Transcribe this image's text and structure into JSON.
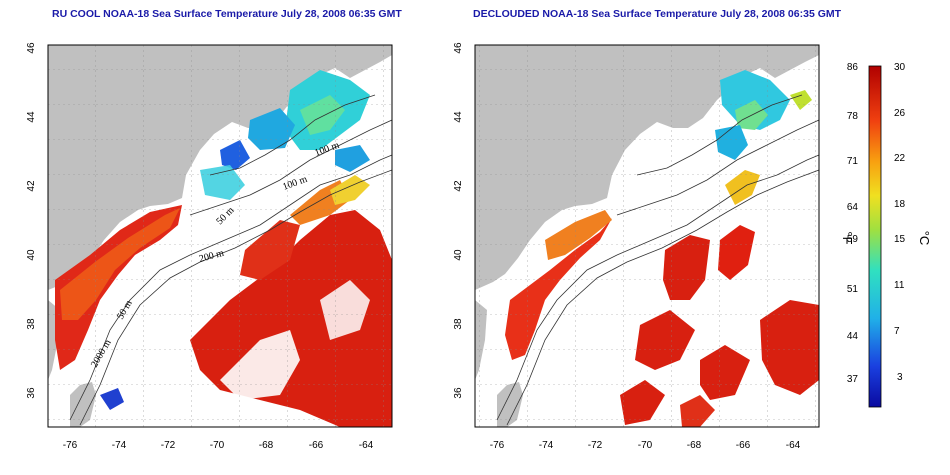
{
  "left_panel": {
    "title": "RU COOL NOAA-18 Sea Surface Temperature July 28, 2008 06:35 GMT"
  },
  "right_panel": {
    "title": "DECLOUDED NOAA-18 Sea Surface Temperature July 28, 2008 06:35 GMT"
  },
  "axes": {
    "x_ticks": [
      "-76",
      "-74",
      "-72",
      "-70",
      "-68",
      "-66",
      "-64"
    ],
    "y_ticks": [
      "46",
      "44",
      "42",
      "40",
      "38",
      "36"
    ]
  },
  "contours": [
    "100 m",
    "100 m",
    "50 m",
    "200 m",
    "50 m",
    "2000 m"
  ],
  "colorbar": {
    "fahrenheit_ticks": [
      "86",
      "78",
      "71",
      "64",
      "59",
      "51",
      "44",
      "37"
    ],
    "celsius_ticks": [
      "30",
      "26",
      "22",
      "18",
      "15",
      "11",
      "7",
      "3"
    ],
    "left_unit": "°F",
    "right_unit": "°C"
  },
  "colors": {
    "land": "#c0c0c0",
    "warm": "#e02010",
    "cold": "#0a10a0",
    "title": "#1a1aa8"
  }
}
